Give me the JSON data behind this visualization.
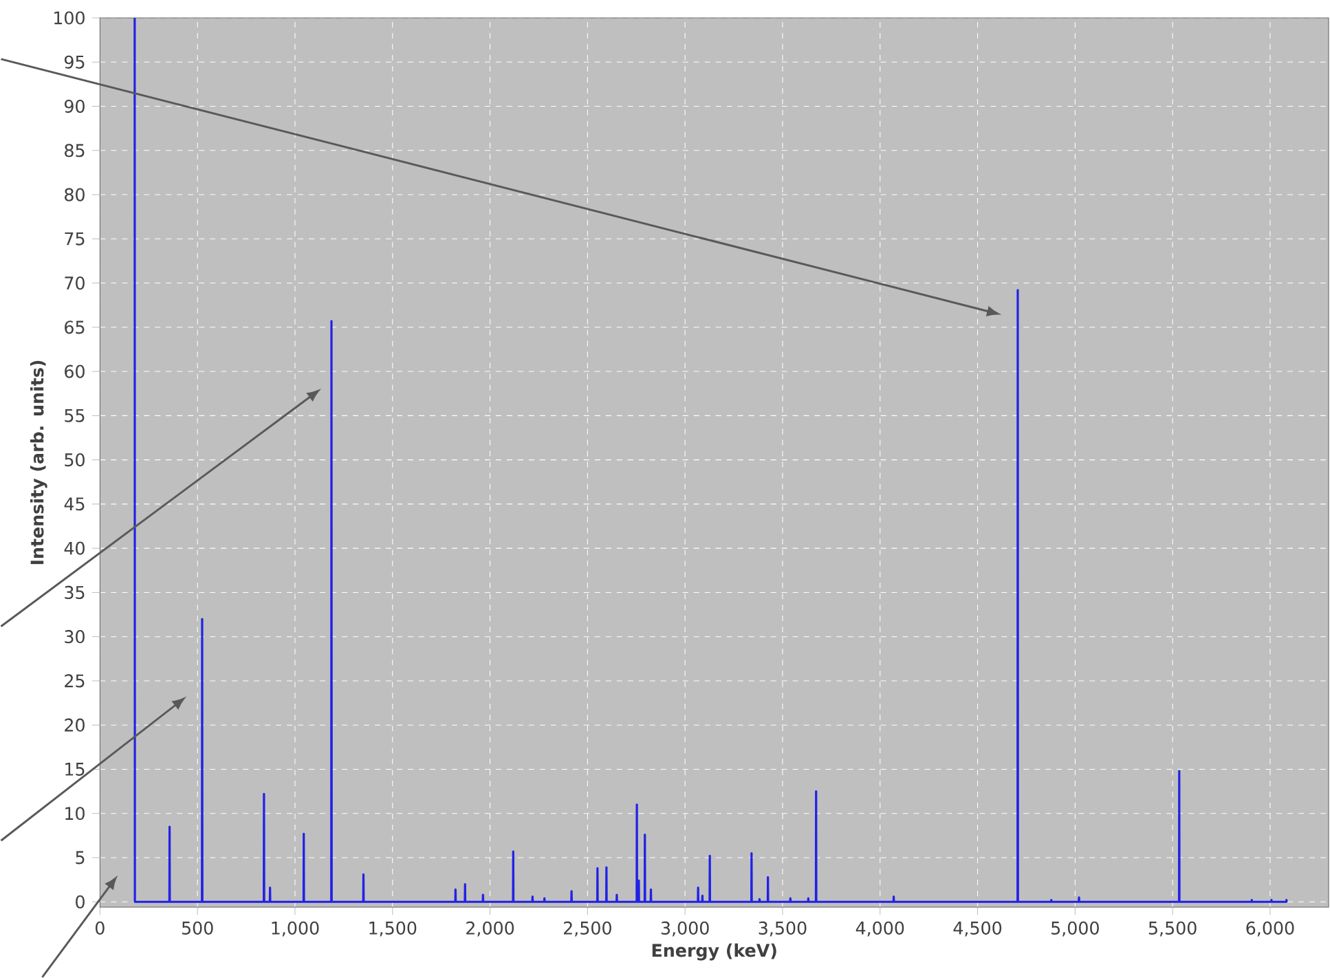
{
  "chart_data": {
    "type": "line",
    "xlabel": "Energy (keV)",
    "ylabel": "Intensity (arb. units)",
    "color": "#2222e6",
    "grid": true,
    "x": [
      178,
      179,
      356,
      357,
      358,
      523,
      524,
      525,
      840,
      841,
      842,
      871,
      872,
      873,
      1044,
      1045,
      1046,
      1186,
      1187,
      1188,
      1350,
      1351,
      1352,
      1822,
      1823,
      1824,
      1871,
      1872,
      1873,
      1963,
      1964,
      1965,
      2118,
      2119,
      2120,
      2217,
      2218,
      2219,
      2278,
      2279,
      2280,
      2417,
      2418,
      2419,
      2550,
      2551,
      2552,
      2596,
      2597,
      2598,
      2649,
      2650,
      2651,
      2752,
      2753,
      2754,
      2762,
      2763,
      2764,
      2793,
      2794,
      2795,
      2824,
      2825,
      2826,
      3066,
      3067,
      3068,
      3088,
      3089,
      3090,
      3126,
      3127,
      3128,
      3340,
      3341,
      3342,
      3381,
      3382,
      3383,
      3424,
      3425,
      3426,
      3539,
      3540,
      3541,
      3631,
      3632,
      3633,
      3671,
      3672,
      3673,
      4069,
      4070,
      4071,
      4705,
      4706,
      4707,
      4877,
      4878,
      4879,
      5019,
      5020,
      5021,
      5533,
      5534,
      5535,
      5905,
      5906,
      5907,
      6006,
      6007,
      6008,
      6083,
      6084,
      6085
    ],
    "values": [
      100,
      0,
      0,
      8.5,
      0,
      0,
      32,
      0,
      0,
      12.2,
      0,
      0,
      1.6,
      0,
      0,
      7.7,
      0,
      0,
      65.7,
      0,
      0,
      3.1,
      0,
      0,
      1.4,
      0,
      0,
      2,
      0,
      0,
      0.8,
      0,
      0,
      5.7,
      0,
      0,
      0.6,
      0,
      0,
      0.4,
      0,
      0,
      1.2,
      0,
      0,
      3.8,
      0,
      0,
      3.9,
      0,
      0,
      0.8,
      0,
      0,
      11,
      0,
      0,
      2.4,
      0,
      0,
      7.6,
      0,
      0,
      1.4,
      0,
      0,
      1.6,
      0,
      0,
      0.7,
      0,
      0,
      5.2,
      0,
      0,
      5.5,
      0,
      0,
      0.3,
      0,
      0,
      2.8,
      0,
      0,
      0.4,
      0,
      0,
      0.4,
      0,
      0,
      12.5,
      0,
      0,
      0.6,
      0,
      0,
      69.2,
      0,
      0,
      0.2,
      0,
      0,
      0.5,
      0,
      0,
      14.8,
      0,
      0,
      0.2,
      0,
      0,
      0.2,
      0,
      0,
      0.2,
      0
    ],
    "xlim": [
      0,
      6300
    ],
    "ylim": [
      -0.6,
      100
    ],
    "xticks": [
      0,
      500,
      {
        "value": 1000,
        "label": "1,000"
      },
      {
        "value": 1500,
        "label": "1,500"
      },
      {
        "value": 2000,
        "label": "2,000"
      },
      {
        "value": 2500,
        "label": "2,500"
      },
      {
        "value": 3000,
        "label": "3,000"
      },
      {
        "value": 3500,
        "label": "3,500"
      },
      {
        "value": 4000,
        "label": "4,000"
      },
      {
        "value": 4500,
        "label": "4,500"
      },
      {
        "value": 5000,
        "label": "5,000"
      },
      {
        "value": 5500,
        "label": "5,500"
      },
      {
        "value": 6000,
        "label": "6,000"
      }
    ],
    "yticks": [
      0,
      5,
      10,
      15,
      20,
      25,
      30,
      35,
      40,
      45,
      50,
      55,
      60,
      65,
      70,
      75,
      80,
      85,
      90,
      95,
      100
    ]
  }
}
